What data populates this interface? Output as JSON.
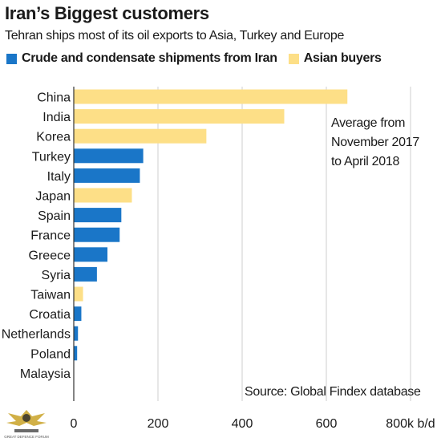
{
  "header": {
    "title": "Iran’s Biggest customers",
    "subtitle": "Tehran ships most of its oil exports to Asia, Turkey and Europe"
  },
  "legend": {
    "items": [
      {
        "label": "Crude and condensate shipments from Iran",
        "color": "#1a76c8"
      },
      {
        "label": "Asian buyers",
        "color": "#fddf87"
      }
    ]
  },
  "note": "Average from\nNovember 2017\nto April 2018",
  "source": "Source: Global Findex database",
  "logo": {
    "text": "GREAT DEFENCE FORUM",
    "icon": "eagle-emblem-icon"
  },
  "chart_data": {
    "type": "bar",
    "orientation": "horizontal",
    "categories": [
      "China",
      "India",
      "Korea",
      "Turkey",
      "Italy",
      "Japan",
      "Spain",
      "France",
      "Greece",
      "Syria",
      "Taiwan",
      "Croatia",
      "Netherlands",
      "Poland",
      "Malaysia"
    ],
    "values": [
      650,
      500,
      315,
      165,
      157,
      138,
      113,
      109,
      80,
      55,
      22,
      18,
      10,
      8,
      0
    ],
    "groups": [
      "asian",
      "asian",
      "asian",
      "iran",
      "iran",
      "asian",
      "iran",
      "iran",
      "iran",
      "iran",
      "asian",
      "iran",
      "iran",
      "iran",
      "asian"
    ],
    "colors": {
      "asian": "#fddf87",
      "iran": "#1a76c8"
    },
    "xlim": [
      0,
      800
    ],
    "xticks": [
      0,
      200,
      400,
      600,
      800
    ],
    "xtick_labels": [
      "0",
      "200",
      "400",
      "600",
      "800k b/d"
    ],
    "grid": true
  }
}
